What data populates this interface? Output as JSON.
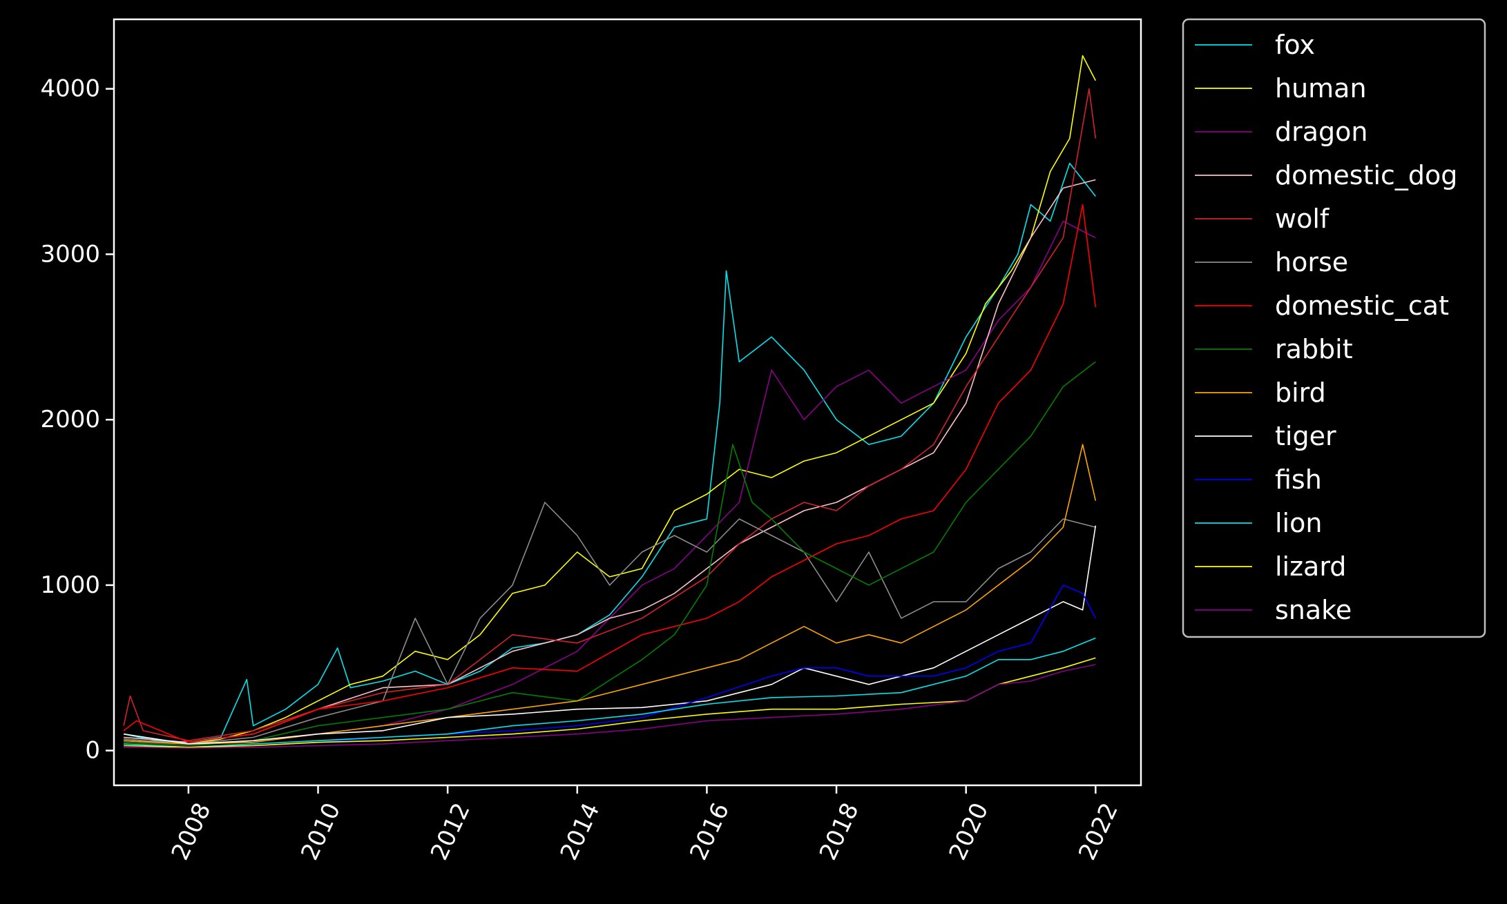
{
  "chart_data": {
    "type": "line",
    "title": "",
    "xlabel": "",
    "ylabel": "",
    "background": "#000000",
    "foreground": "#ffffff",
    "grid": false,
    "legend_position": "outside-right",
    "xlim": [
      2006.85,
      2022.7
    ],
    "ylim": [
      -210,
      4420
    ],
    "x_ticks": [
      2008,
      2010,
      2012,
      2014,
      2016,
      2018,
      2020,
      2022
    ],
    "x_tick_labels": [
      "2008",
      "2010",
      "2012",
      "2014",
      "2016",
      "2018",
      "2020",
      "2022"
    ],
    "y_ticks": [
      0,
      1000,
      2000,
      3000,
      4000
    ],
    "y_tick_labels": [
      "0",
      "1000",
      "2000",
      "3000",
      "4000"
    ],
    "series": [
      {
        "name": "fox",
        "color": "#00e5ee",
        "x": [
          2007,
          2007.5,
          2008,
          2008.5,
          2008.9,
          2009,
          2009.5,
          2010,
          2010.3,
          2010.5,
          2011,
          2011.5,
          2012,
          2012.5,
          2013,
          2013.5,
          2014,
          2014.5,
          2015,
          2015.5,
          2016,
          2016.2,
          2016.3,
          2016.5,
          2017,
          2017.5,
          2018,
          2018.5,
          2019,
          2019.5,
          2020,
          2020.5,
          2020.8,
          2021,
          2021.3,
          2021.6,
          2021.8,
          2022
        ],
        "y": [
          100,
          60,
          50,
          80,
          430,
          150,
          250,
          400,
          620,
          380,
          420,
          480,
          400,
          480,
          620,
          650,
          700,
          820,
          1050,
          1350,
          1400,
          2100,
          2900,
          2350,
          2500,
          2300,
          2000,
          1850,
          1900,
          2100,
          2500,
          2800,
          3000,
          3300,
          3200,
          3550,
          3450,
          3350
        ]
      },
      {
        "name": "human",
        "color": "#ffff00",
        "x": [
          2007,
          2007.5,
          2008,
          2008.5,
          2009,
          2009.5,
          2010,
          2010.5,
          2011,
          2011.5,
          2012,
          2012.5,
          2013,
          2013.5,
          2014,
          2014.5,
          2015,
          2015.5,
          2016,
          2016.5,
          2017,
          2017.5,
          2018,
          2018.5,
          2019,
          2019.5,
          2020,
          2020.3,
          2020.7,
          2021,
          2021.3,
          2021.6,
          2021.8,
          2022
        ],
        "y": [
          60,
          50,
          40,
          70,
          120,
          200,
          300,
          400,
          450,
          600,
          550,
          700,
          950,
          1000,
          1200,
          1050,
          1100,
          1450,
          1550,
          1700,
          1650,
          1750,
          1800,
          1900,
          2000,
          2100,
          2400,
          2700,
          2900,
          3100,
          3500,
          3700,
          4200,
          4050
        ]
      },
      {
        "name": "dragon",
        "color": "#8b008b",
        "x": [
          2007,
          2008,
          2009,
          2010,
          2011,
          2012,
          2013,
          2014,
          2014.5,
          2015,
          2015.5,
          2016,
          2016.5,
          2017,
          2017.5,
          2018,
          2018.5,
          2019,
          2019.5,
          2020,
          2020.5,
          2021,
          2021.5,
          2022
        ],
        "y": [
          50,
          40,
          60,
          100,
          150,
          250,
          400,
          600,
          800,
          1000,
          1100,
          1300,
          1500,
          2300,
          2000,
          2200,
          2300,
          2100,
          2200,
          2300,
          2600,
          2800,
          3200,
          3100
        ]
      },
      {
        "name": "domestic_dog",
        "color": "#ffc0cb",
        "x": [
          2007,
          2008,
          2009,
          2010,
          2011,
          2012,
          2012.5,
          2013,
          2013.5,
          2014,
          2014.5,
          2015,
          2015.5,
          2016,
          2016.5,
          2017,
          2017.5,
          2018,
          2018.5,
          2019,
          2019.5,
          2020,
          2020.5,
          2021,
          2021.5,
          2022
        ],
        "y": [
          80,
          50,
          100,
          250,
          380,
          400,
          500,
          600,
          650,
          700,
          800,
          850,
          950,
          1100,
          1250,
          1350,
          1450,
          1500,
          1600,
          1700,
          1800,
          2100,
          2700,
          3100,
          3400,
          3450
        ]
      },
      {
        "name": "wolf",
        "color": "#d2222d",
        "x": [
          2007,
          2007.1,
          2007.3,
          2008,
          2009,
          2010,
          2011,
          2012,
          2013,
          2014,
          2015,
          2016,
          2016.5,
          2017,
          2017.5,
          2018,
          2018.5,
          2019,
          2019.5,
          2020,
          2020.5,
          2021,
          2021.5,
          2021.9,
          2022
        ],
        "y": [
          150,
          330,
          120,
          60,
          120,
          250,
          350,
          400,
          700,
          650,
          800,
          1050,
          1250,
          1400,
          1500,
          1450,
          1600,
          1700,
          1850,
          2200,
          2500,
          2800,
          3100,
          4000,
          3700
        ]
      },
      {
        "name": "horse",
        "color": "#8c8c8c",
        "x": [
          2007,
          2008,
          2009,
          2010,
          2011,
          2011.5,
          2012,
          2012.5,
          2013,
          2013.5,
          2014,
          2014.5,
          2015,
          2015.5,
          2016,
          2016.5,
          2017,
          2017.5,
          2018,
          2018.5,
          2019,
          2019.5,
          2020,
          2020.5,
          2021,
          2021.5,
          2022
        ],
        "y": [
          70,
          40,
          80,
          200,
          300,
          800,
          400,
          800,
          1000,
          1500,
          1300,
          1000,
          1200,
          1300,
          1200,
          1400,
          1300,
          1200,
          900,
          1200,
          800,
          900,
          900,
          1100,
          1200,
          1400,
          1350
        ]
      },
      {
        "name": "domestic_cat",
        "color": "#ff0000",
        "x": [
          2007,
          2007.2,
          2008,
          2009,
          2010,
          2011,
          2012,
          2013,
          2014,
          2015,
          2016,
          2016.5,
          2017,
          2017.5,
          2018,
          2018.5,
          2019,
          2019.5,
          2020,
          2020.5,
          2021,
          2021.5,
          2021.8,
          2022
        ],
        "y": [
          120,
          180,
          50,
          100,
          250,
          300,
          380,
          500,
          480,
          700,
          800,
          900,
          1050,
          1150,
          1250,
          1300,
          1400,
          1450,
          1700,
          2100,
          2300,
          2700,
          3300,
          2680
        ]
      },
      {
        "name": "rabbit",
        "color": "#008000",
        "x": [
          2007,
          2008,
          2009,
          2010,
          2011,
          2012,
          2013,
          2014,
          2015,
          2015.5,
          2016,
          2016.4,
          2016.7,
          2017,
          2017.5,
          2018,
          2018.5,
          2019,
          2019.5,
          2020,
          2020.5,
          2021,
          2021.5,
          2022
        ],
        "y": [
          50,
          30,
          60,
          150,
          200,
          250,
          350,
          300,
          550,
          700,
          1000,
          1850,
          1500,
          1400,
          1200,
          1100,
          1000,
          1100,
          1200,
          1500,
          1700,
          1900,
          2200,
          2350
        ]
      },
      {
        "name": "bird",
        "color": "#ffa500",
        "x": [
          2007,
          2008,
          2009,
          2010,
          2011,
          2012,
          2013,
          2014,
          2015,
          2015.5,
          2016,
          2016.5,
          2017,
          2017.5,
          2018,
          2018.5,
          2019,
          2019.5,
          2020,
          2020.5,
          2021,
          2021.5,
          2021.8,
          2022
        ],
        "y": [
          60,
          40,
          50,
          100,
          150,
          200,
          250,
          300,
          400,
          450,
          500,
          550,
          650,
          750,
          650,
          700,
          650,
          750,
          850,
          1000,
          1150,
          1350,
          1850,
          1510
        ]
      },
      {
        "name": "tiger",
        "color": "#ffffff",
        "x": [
          2007,
          2008,
          2009,
          2010,
          2011,
          2012,
          2013,
          2014,
          2015,
          2016,
          2017,
          2017.5,
          2018,
          2018.5,
          2019,
          2019.5,
          2020,
          2020.5,
          2021,
          2021.5,
          2021.8,
          2022
        ],
        "y": [
          100,
          40,
          60,
          100,
          120,
          200,
          220,
          250,
          260,
          300,
          400,
          500,
          450,
          400,
          450,
          500,
          600,
          700,
          800,
          900,
          850,
          1360
        ]
      },
      {
        "name": "fish",
        "color": "#0000ff",
        "x": [
          2007,
          2008,
          2009,
          2010,
          2011,
          2012,
          2013,
          2014,
          2015,
          2016,
          2017,
          2017.5,
          2018,
          2018.5,
          2019,
          2019.5,
          2020,
          2020.5,
          2021,
          2021.5,
          2021.8,
          2022
        ],
        "y": [
          30,
          20,
          30,
          50,
          80,
          100,
          120,
          150,
          200,
          320,
          450,
          500,
          500,
          450,
          450,
          450,
          500,
          600,
          650,
          1000,
          950,
          800
        ]
      },
      {
        "name": "lion",
        "color": "#00e5ee",
        "x": [
          2007,
          2008,
          2009,
          2010,
          2011,
          2012,
          2013,
          2014,
          2015,
          2016,
          2017,
          2018,
          2019,
          2020,
          2020.5,
          2021,
          2021.5,
          2022
        ],
        "y": [
          40,
          20,
          40,
          60,
          80,
          100,
          150,
          180,
          220,
          280,
          320,
          330,
          350,
          450,
          550,
          550,
          600,
          680
        ]
      },
      {
        "name": "lizard",
        "color": "#ffff00",
        "x": [
          2007,
          2008,
          2009,
          2010,
          2011,
          2012,
          2013,
          2014,
          2015,
          2016,
          2017,
          2018,
          2019,
          2020,
          2020.5,
          2021,
          2021.5,
          2022
        ],
        "y": [
          30,
          20,
          30,
          50,
          60,
          80,
          100,
          130,
          180,
          220,
          250,
          250,
          280,
          300,
          400,
          450,
          500,
          560
        ]
      },
      {
        "name": "snake",
        "color": "#8b008b",
        "x": [
          2007,
          2008,
          2009,
          2010,
          2011,
          2012,
          2013,
          2014,
          2015,
          2016,
          2017,
          2018,
          2019,
          2020,
          2020.5,
          2021,
          2021.5,
          2022
        ],
        "y": [
          20,
          15,
          20,
          30,
          40,
          60,
          80,
          100,
          130,
          180,
          200,
          220,
          250,
          300,
          400,
          420,
          480,
          520
        ]
      }
    ]
  }
}
